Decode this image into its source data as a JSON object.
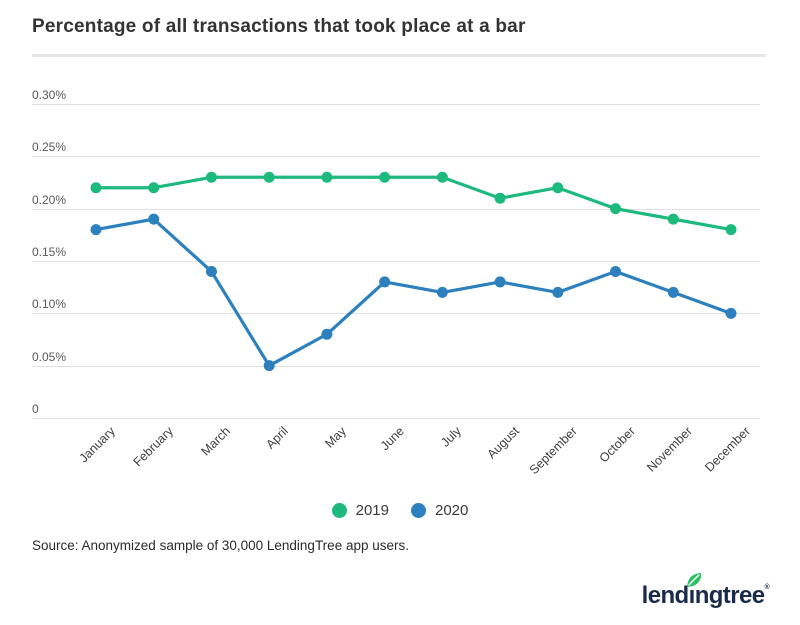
{
  "title": "Percentage of all transactions that took place at a bar",
  "source": "Source: Anonymized sample of 30,000 LendingTree app users.",
  "logo": {
    "part1": "lend",
    "dotless_i": "ı",
    "part2": "ngtree",
    "mark": "®",
    "navy_color": "#1a2b49",
    "leaf_color": "#2abf62"
  },
  "legend": {
    "items": [
      {
        "label": "2019",
        "color": "#1db97d"
      },
      {
        "label": "2020",
        "color": "#2c80bd"
      }
    ]
  },
  "chart_data": {
    "type": "line",
    "title": "Percentage of all transactions that took place at a bar",
    "xlabel": "",
    "ylabel": "",
    "grid": true,
    "legend_position": "bottom",
    "ylim": [
      0,
      0.3
    ],
    "categories": [
      "January",
      "February",
      "March",
      "April",
      "May",
      "June",
      "July",
      "August",
      "September",
      "October",
      "November",
      "December"
    ],
    "yticks": [
      {
        "label": "0.30%",
        "value": 0.3
      },
      {
        "label": "0.25%",
        "value": 0.25
      },
      {
        "label": "0.20%",
        "value": 0.2
      },
      {
        "label": "0.15%",
        "value": 0.15
      },
      {
        "label": "0.10%",
        "value": 0.1
      },
      {
        "label": "0.05%",
        "value": 0.05
      },
      {
        "label": "0",
        "value": 0
      }
    ],
    "series": [
      {
        "name": "2019",
        "color": "#1db97d",
        "values": [
          0.22,
          0.22,
          0.23,
          0.23,
          0.23,
          0.23,
          0.23,
          0.21,
          0.22,
          0.2,
          0.19,
          0.18
        ]
      },
      {
        "name": "2020",
        "color": "#2c80bd",
        "values": [
          0.18,
          0.19,
          0.14,
          0.05,
          0.08,
          0.13,
          0.12,
          0.13,
          0.12,
          0.14,
          0.12,
          0.1
        ]
      }
    ]
  }
}
